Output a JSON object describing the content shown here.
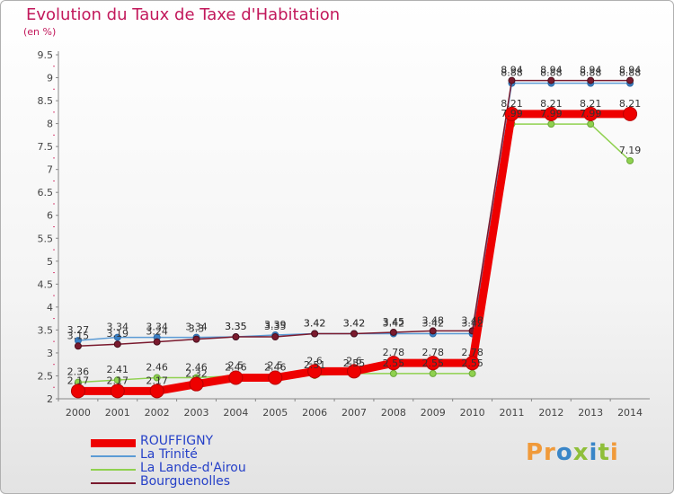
{
  "title": "Evolution du Taux de Taxe d'Habitation",
  "unit_label": "(en %)",
  "logo": {
    "text": "Proxiti",
    "colors": [
      "#f09a3a",
      "#3a86c8",
      "#8fbf3a"
    ]
  },
  "chart_data": {
    "type": "line",
    "title": "Evolution du Taux de Taxe d'Habitation",
    "ylabel": "(en %)",
    "xlabel": "",
    "ylim": [
      2,
      9.5
    ],
    "yticks": [
      "2",
      "2.5",
      "3",
      "3.5",
      "4",
      "4.5",
      "5",
      "5.5",
      "6",
      "6.5",
      "7",
      "7.5",
      "8",
      "8.5",
      "9",
      "9.5"
    ],
    "categories": [
      "2000",
      "2001",
      "2002",
      "2003",
      "2004",
      "2005",
      "2006",
      "2007",
      "2008",
      "2009",
      "2010",
      "2011",
      "2012",
      "2013",
      "2014"
    ],
    "grid": false,
    "legend_position": "bottom-left",
    "series": [
      {
        "name": "ROUFFIGNY",
        "color": "#ee0000",
        "values": [
          2.17,
          2.17,
          2.17,
          2.32,
          2.46,
          2.46,
          2.6,
          2.6,
          2.78,
          2.78,
          2.78,
          8.21,
          8.21,
          8.21,
          8.21
        ]
      },
      {
        "name": "La Trinité",
        "color": "#5b9bd5",
        "values": [
          3.27,
          3.34,
          3.34,
          3.34,
          3.35,
          3.39,
          3.42,
          3.42,
          3.42,
          3.42,
          3.42,
          8.88,
          8.88,
          8.88,
          8.88
        ]
      },
      {
        "name": "La Lande-d'Airou",
        "color": "#8fd14f",
        "values": [
          2.36,
          2.41,
          2.46,
          2.46,
          2.5,
          2.5,
          2.51,
          2.55,
          2.55,
          2.55,
          2.55,
          7.99,
          7.99,
          7.99,
          7.19
        ]
      },
      {
        "name": "Bourguenolles",
        "color": "#7a1a2e",
        "values": [
          3.15,
          3.19,
          3.24,
          3.3,
          3.35,
          3.35,
          3.42,
          3.42,
          3.45,
          3.48,
          3.48,
          8.94,
          8.94,
          8.94,
          8.94
        ]
      }
    ],
    "data_labels": [
      [
        "2.17",
        "2.17",
        "2.17",
        "2.32",
        "2.46",
        "2.46",
        "2.6",
        "2.6",
        "2.78",
        "2.78",
        "2.78",
        "8.21",
        "8.21",
        "8.21",
        "8.21"
      ],
      [
        "3.27",
        "3.34",
        "3.34",
        "3.34",
        "3.35",
        "3.39",
        "3.42",
        "3.42",
        "3.42",
        "3.42",
        "3.42",
        "8.88",
        "8.88",
        "8.88",
        "8.88"
      ],
      [
        "2.36",
        "2.41",
        "2.46",
        "2.46",
        "2.5",
        "2.5",
        "2.51",
        "2.55",
        "2.55",
        "2.55",
        "2.55",
        "7.99",
        "7.99",
        "7.99",
        "7.19"
      ],
      [
        "3.15",
        "3.19",
        "3.24",
        "3.3",
        "3.35",
        "3.35",
        "3.42",
        "3.42",
        "3.45",
        "3.48",
        "3.48",
        "8.94",
        "8.94",
        "8.94",
        "8.94"
      ]
    ]
  }
}
